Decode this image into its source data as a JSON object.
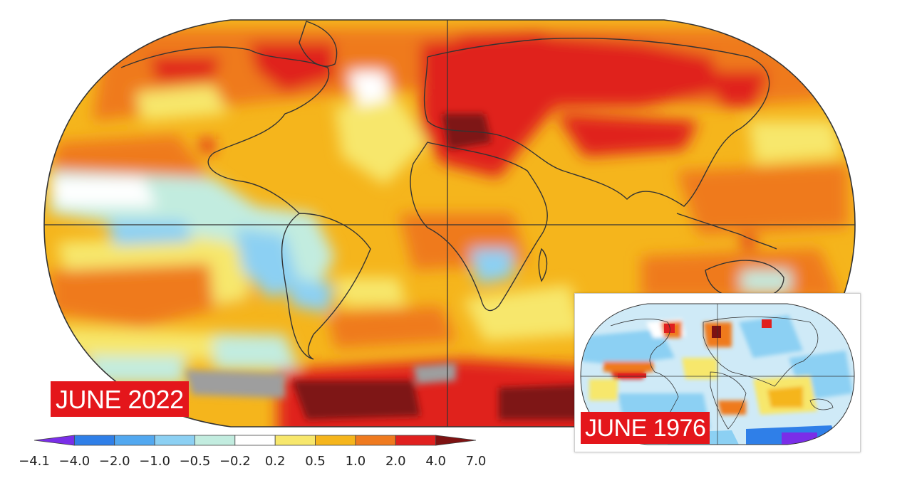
{
  "labels": {
    "main_map": "JUNE 2022",
    "inset_map": "JUNE 1976"
  },
  "legend": {
    "ticks": [
      "−4.1",
      "−4.0",
      "−2.0",
      "−1.0",
      "−0.5",
      "−0.2",
      "0.2",
      "0.5",
      "1.0",
      "2.0",
      "4.0",
      "7.0"
    ],
    "colors": [
      "#7a2ee8",
      "#2f7fe8",
      "#52a8f0",
      "#8cd0f3",
      "#c2ecdf",
      "#ffffff",
      "#f7e76c",
      "#f5b51c",
      "#ef7a1f",
      "#e0201f",
      "#7e1212"
    ]
  }
}
